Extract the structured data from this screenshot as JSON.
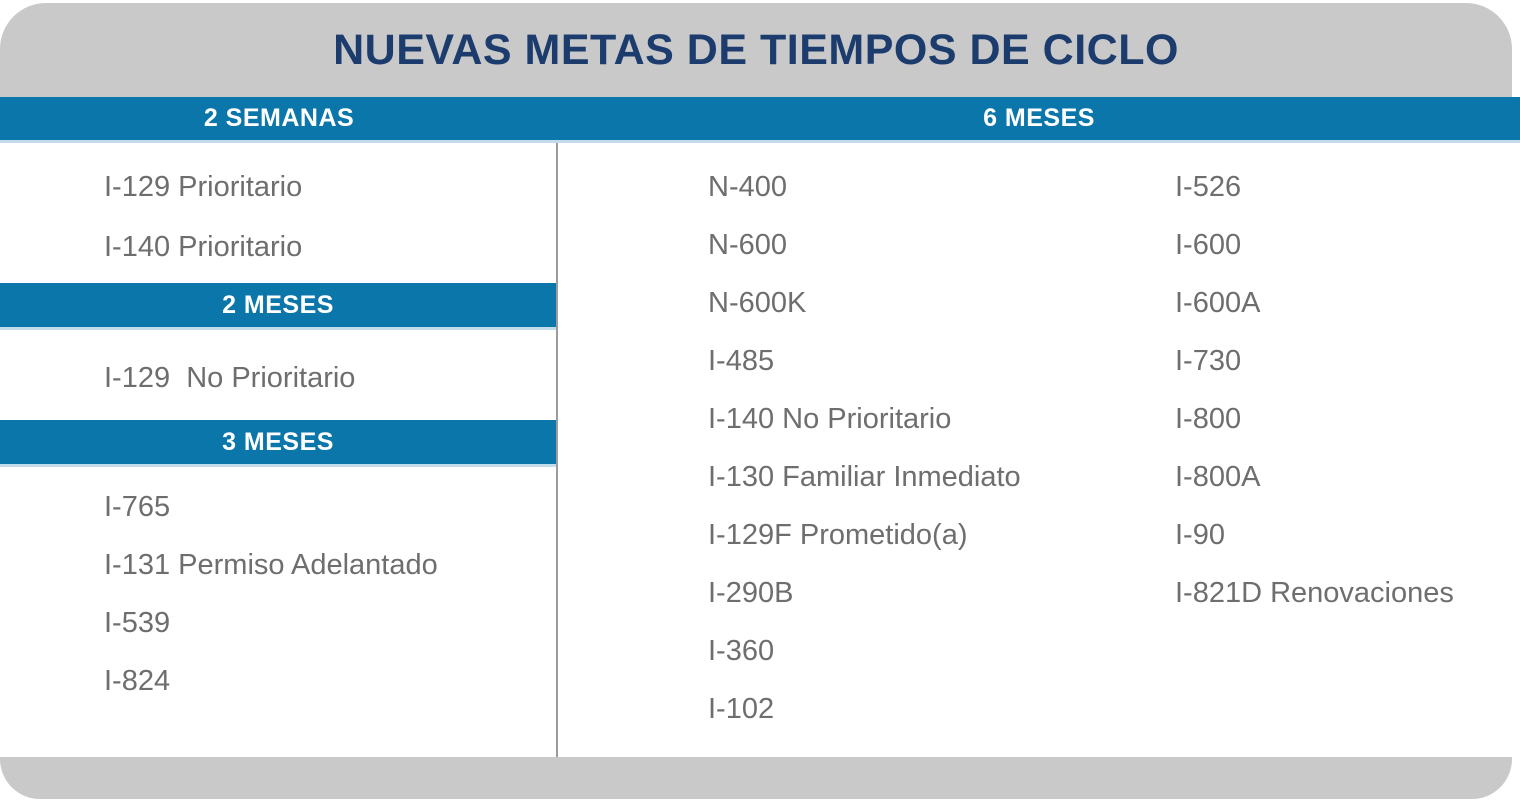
{
  "title": "NUEVAS METAS DE TIEMPOS DE CICLO",
  "header_row": {
    "left": "2 SEMANAS",
    "right": "6 MESES"
  },
  "left_column": {
    "group1_items": [
      "I-129 Prioritario",
      "I-140 Prioritario"
    ],
    "bar2": "2 MESES",
    "group2_items": [
      "I-129  No Prioritario"
    ],
    "bar3": "3 MESES",
    "group3_items": [
      "I-765",
      "I-131 Permiso Adelantado",
      "I-539",
      "I-824"
    ]
  },
  "right_area": {
    "col1_items": [
      "N-400",
      "N-600",
      "N-600K",
      "I-485",
      "I-140 No Prioritario",
      "I-130 Familiar Inmediato",
      "I-129F Prometido(a)",
      "I-290B",
      "I-360",
      "I-102"
    ],
    "col2_items": [
      "I-526",
      "I-600",
      "I-600A",
      "I-730",
      "I-800",
      "I-800A",
      "I-90",
      "I-821D Renovaciones"
    ]
  },
  "colors": {
    "accent_blue": "#0b76aa",
    "header_gray": "#c9c9c9",
    "title_navy": "#1c3c6e",
    "item_text": "#6e6e6e",
    "light_blue_edge": "#c2dcec",
    "divider": "#9c9c9c"
  }
}
